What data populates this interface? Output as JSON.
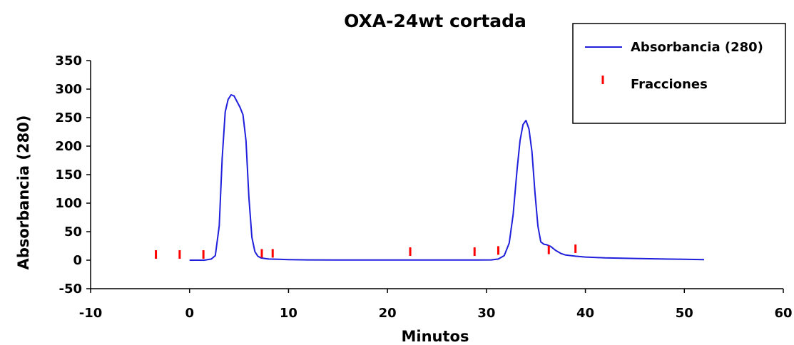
{
  "chart_data": {
    "type": "line",
    "title": "OXA-24wt cortada",
    "xlabel": "Minutos",
    "ylabel": "Absorbancia (280)",
    "xlim": [
      -10,
      60
    ],
    "ylim": [
      -50,
      350
    ],
    "xticks": [
      -10,
      0,
      10,
      20,
      30,
      40,
      50,
      60
    ],
    "yticks": [
      -50,
      0,
      50,
      100,
      150,
      200,
      250,
      300,
      350
    ],
    "grid": false,
    "legend_position": "top-right",
    "series": [
      {
        "name": "Absorbancia (280)",
        "kind": "line",
        "color": "#1f1fdc",
        "x": [
          0,
          1.5,
          2.2,
          2.6,
          3.0,
          3.3,
          3.6,
          3.9,
          4.2,
          4.5,
          4.8,
          5.1,
          5.4,
          5.7,
          6.0,
          6.3,
          6.6,
          6.9,
          7.2,
          7.6,
          8.0,
          9.0,
          10.0,
          12.0,
          15.0,
          20.0,
          25.0,
          29.0,
          30.5,
          31.2,
          31.8,
          32.3,
          32.7,
          33.1,
          33.4,
          33.7,
          34.0,
          34.3,
          34.6,
          34.9,
          35.2,
          35.5,
          35.8,
          36.1,
          36.5,
          37.0,
          37.5,
          38.0,
          39.0,
          40.0,
          42.0,
          45.0,
          48.0,
          50.0,
          52.0
        ],
        "y": [
          0,
          0,
          2,
          8,
          60,
          180,
          260,
          282,
          290,
          288,
          278,
          268,
          255,
          210,
          110,
          40,
          15,
          7,
          4,
          3,
          2,
          1.5,
          1,
          0.5,
          0.3,
          0.2,
          0.2,
          0.3,
          0.5,
          2,
          8,
          30,
          80,
          160,
          210,
          238,
          245,
          230,
          190,
          120,
          60,
          32,
          28,
          27,
          24,
          17,
          12,
          9,
          7,
          5.5,
          4,
          3,
          2,
          1.5,
          1
        ]
      },
      {
        "name": "Fracciones",
        "kind": "marker",
        "color": "#ff0000",
        "x": [
          -3.4,
          -1.0,
          1.4,
          7.3,
          8.4,
          22.3,
          28.8,
          31.2,
          36.3,
          39.0
        ],
        "y": [
          10,
          10,
          10,
          12,
          12,
          15,
          15,
          17,
          18,
          20
        ]
      }
    ]
  }
}
